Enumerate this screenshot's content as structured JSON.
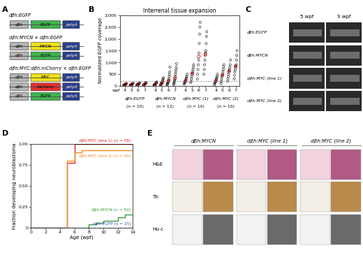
{
  "panel_labels": [
    "A",
    "B",
    "C",
    "D",
    "E"
  ],
  "constructs": [
    {
      "title": "dβh:EGFP",
      "rows": [
        [
          {
            "label": "dβh",
            "color": "#b5b5b5"
          },
          {
            "label": "EGFP",
            "color": "#3fb34f"
          },
          {
            "label": "polyA",
            "color": "#2b3f8f"
          }
        ]
      ]
    },
    {
      "title": "dβh:MYCN × dβh:EGFP",
      "rows": [
        [
          {
            "label": "dβh",
            "color": "#b5b5b5"
          },
          {
            "label": "MYCN",
            "color": "#f0e11a"
          },
          {
            "label": "polyA",
            "color": "#2b3f8f"
          }
        ],
        [
          {
            "label": "dβh",
            "color": "#b5b5b5"
          },
          {
            "label": "EGFP",
            "color": "#3fb34f"
          },
          {
            "label": "polyA",
            "color": "#2b3f8f"
          }
        ]
      ]
    },
    {
      "title": "dβh:MYC;dβh:mCherry × dβh:EGFP",
      "rows": [
        [
          {
            "label": "dβh",
            "color": "#b5b5b5"
          },
          {
            "label": "MYC",
            "color": "#f0e11a"
          },
          {
            "label": "polyA",
            "color": "#2b3f8f"
          }
        ],
        [
          {
            "label": "dβh",
            "color": "#b5b5b5"
          },
          {
            "label": "mCherry",
            "color": "#e03131"
          },
          {
            "label": "polyA",
            "color": "#2b3f8f"
          }
        ],
        [
          {
            "label": "dβh",
            "color": "#b5b5b5"
          },
          {
            "label": "EGFP",
            "color": "#3fb34f"
          },
          {
            "label": "polyA",
            "color": "#2b3f8f"
          }
        ]
      ]
    }
  ],
  "chart_data": [
    {
      "type": "scatter",
      "title": "Interrenal tissue expansion",
      "y_label": "Normalized EGFP coverage",
      "x_label": "wpf",
      "ylim": [
        0,
        3000
      ],
      "yticks": [
        0,
        500,
        {
          "value": 1000,
          "label": "1,000"
        },
        {
          "value": 1500,
          "label": "1,500"
        },
        {
          "value": 2000,
          "label": "2,000"
        },
        {
          "value": 2500,
          "label": "2,500"
        },
        {
          "value": 3000,
          "label": "3,000"
        }
      ],
      "reference_line": 200,
      "color": "#000000",
      "median_color": "#d62828",
      "marker": "o",
      "groups": [
        {
          "name": "dβh:EGFP",
          "n_label": "(n = 10)",
          "categories": [
            "4",
            "5",
            "6",
            "7"
          ],
          "values": [
            [
              30,
              40,
              50,
              55,
              60,
              70,
              75,
              80,
              90,
              110
            ],
            [
              35,
              45,
              50,
              60,
              65,
              70,
              80,
              90,
              100,
              120
            ],
            [
              40,
              50,
              60,
              70,
              75,
              80,
              90,
              100,
              120,
              140
            ],
            [
              40,
              55,
              60,
              70,
              80,
              90,
              100,
              110,
              130,
              150
            ]
          ],
          "medians": [
            65,
            68,
            78,
            85
          ]
        },
        {
          "name": "dβh:MYCN",
          "n_label": "(n = 12)",
          "categories": [
            "4",
            "5",
            "6",
            "7"
          ],
          "values": [
            [
              30,
              40,
              50,
              60,
              70,
              80,
              90,
              100,
              110,
              130,
              150,
              180
            ],
            [
              40,
              60,
              80,
              90,
              100,
              120,
              140,
              160,
              200,
              250,
              300,
              350
            ],
            [
              50,
              80,
              100,
              130,
              160,
              200,
              250,
              300,
              400,
              500,
              600,
              800
            ],
            [
              60,
              100,
              150,
              200,
              250,
              300,
              400,
              500,
              600,
              700,
              800,
              950
            ]
          ],
          "medians": [
            85,
            130,
            225,
            350
          ]
        },
        {
          "name": "dβh:MYC (1)",
          "n_label": "(n = 10)",
          "categories": [
            "4",
            "5",
            "6",
            "7"
          ],
          "values": [
            [
              80,
              120,
              150,
              180,
              200,
              250,
              300,
              350,
              400,
              500
            ],
            [
              150,
              200,
              300,
              400,
              500,
              550,
              600,
              700,
              800,
              900
            ],
            [
              300,
              500,
              700,
              900,
              1100,
              1400,
              1800,
              2200,
              2500,
              2700
            ],
            [
              500,
              700,
              900,
              1100,
              1300,
              1400,
              1500,
              1800,
              2100,
              2300
            ]
          ],
          "medians": [
            225,
            525,
            1250,
            1350
          ]
        },
        {
          "name": "dβh:MYC (2)",
          "n_label": "(n = 10)",
          "categories": [
            "4",
            "5",
            "6",
            "7"
          ],
          "values": [
            [
              60,
              100,
              150,
              180,
              200,
              250,
              300,
              350,
              400,
              500
            ],
            [
              100,
              200,
              300,
              400,
              450,
              500,
              600,
              700,
              800,
              900
            ],
            [
              200,
              300,
              400,
              500,
              600,
              650,
              700,
              800,
              900,
              1100
            ],
            [
              300,
              450,
              600,
              700,
              800,
              850,
              900,
              1100,
              1300,
              1500
            ]
          ],
          "medians": [
            225,
            475,
            625,
            825
          ]
        }
      ]
    },
    {
      "type": "line",
      "x_label": "Age (wpf)",
      "y_label": "Fraction developing neuroblastoma",
      "xlim": [
        0,
        14
      ],
      "xticks": [
        0,
        2,
        4,
        6,
        8,
        10,
        12,
        14
      ],
      "ylim": [
        0,
        1
      ],
      "yticks": [
        0,
        {
          "value": 0.25,
          "label": "0.25"
        },
        {
          "value": 0.5,
          "label": "0.50"
        },
        {
          "value": 0.75,
          "label": "0.75"
        },
        {
          "value": 1,
          "label": "1.00"
        }
      ],
      "series": [
        {
          "name": "dβh:MYC (line 1)",
          "n_label": "(n = 58)",
          "color": "#e02020",
          "line_style": "solid",
          "x": [
            0,
            5,
            6,
            14
          ],
          "values": [
            0,
            0.78,
            1.0,
            1.0
          ]
        },
        {
          "name": "dβh:MYC (line 2)",
          "n_label": "(n = 45)",
          "color": "#f08c1e",
          "line_style": "solid",
          "x": [
            0,
            5,
            6,
            7,
            14
          ],
          "values": [
            0,
            0.8,
            0.9,
            0.93,
            0.93
          ]
        },
        {
          "name": "dβh:MYCN",
          "n_label": "(n = 50)",
          "color": "#3a9a3a",
          "line_style": "solid",
          "x": [
            0,
            8,
            9,
            10,
            12,
            13,
            14
          ],
          "values": [
            0,
            0.04,
            0.06,
            0.08,
            0.12,
            0.16,
            0.16
          ]
        },
        {
          "name": "dβh:EGFP",
          "n_label": "(n = 25)",
          "color": "#3050c0",
          "line_style": "dashed",
          "x": [
            0,
            14
          ],
          "values": [
            0,
            0
          ]
        }
      ]
    }
  ],
  "images_c": {
    "columns": [
      "5 wpf",
      "9 wpf"
    ],
    "rows": [
      "dβh:EGFP",
      "dβh:MYCN",
      "dβh:MYC (line 1)",
      "dβh:MYC (line 2)"
    ]
  },
  "images_e": {
    "columns": [
      "dβh:MYCN",
      "dβh:MYC (line 1)",
      "dβh:MYC (line 2)"
    ],
    "rows": [
      "H&E",
      "Th",
      "Hu-c"
    ]
  }
}
